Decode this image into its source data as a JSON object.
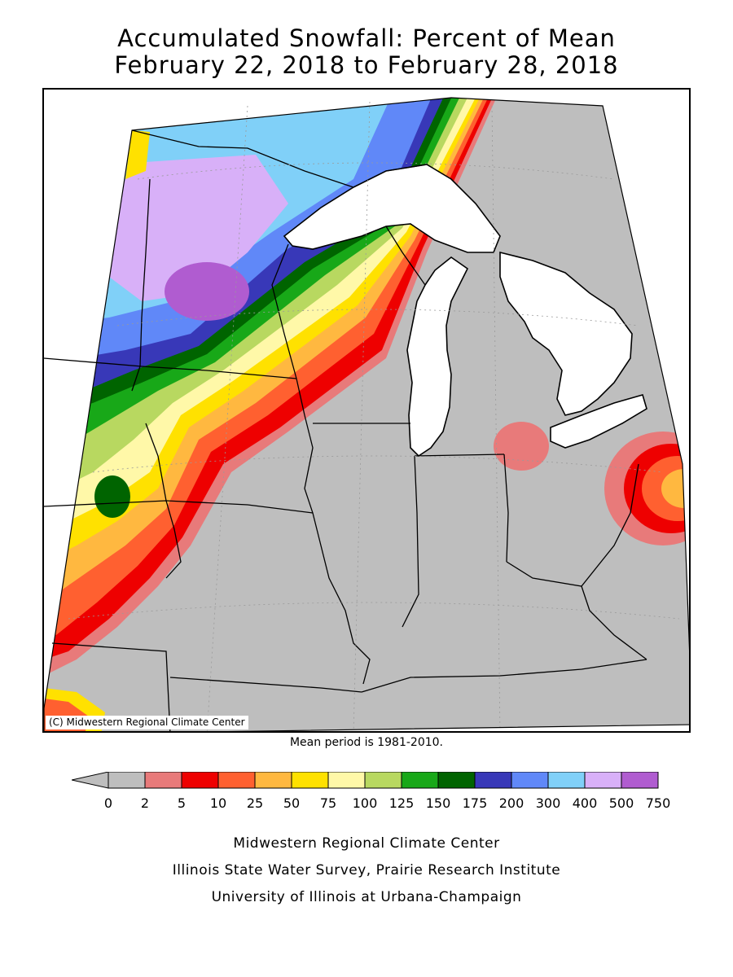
{
  "title_line1": "Accumulated Snowfall: Percent of Mean",
  "title_line2": "February 22, 2018 to February 28, 2018",
  "copyright": "(C) Midwestern Regional Climate Center",
  "mean_period": "Mean period is 1981-2010.",
  "legend": {
    "bins": [
      {
        "from": "0",
        "color": "#bebebe"
      },
      {
        "from": "2",
        "color": "#e87a7a"
      },
      {
        "from": "5",
        "color": "#ee0000"
      },
      {
        "from": "10",
        "color": "#ff6030"
      },
      {
        "from": "25",
        "color": "#ffb840"
      },
      {
        "from": "50",
        "color": "#ffe100"
      },
      {
        "from": "75",
        "color": "#fff8a8"
      },
      {
        "from": "100",
        "color": "#b8d860"
      },
      {
        "from": "125",
        "color": "#18a818"
      },
      {
        "from": "150",
        "color": "#006400"
      },
      {
        "from": "175",
        "color": "#3838b8"
      },
      {
        "from": "200",
        "color": "#6088f8"
      },
      {
        "from": "300",
        "color": "#80d0f8"
      },
      {
        "from": "400",
        "color": "#d8b0f8"
      },
      {
        "from": "500",
        "color": "#b05cd0"
      }
    ],
    "labels": [
      "0",
      "2",
      "5",
      "10",
      "25",
      "50",
      "75",
      "100",
      "125",
      "150",
      "175",
      "200",
      "300",
      "400",
      "500",
      "750"
    ]
  },
  "footer": {
    "line1": "Midwestern Regional Climate Center",
    "line2": "Illinois State Water Survey, Prairie Research Institute",
    "line3": "University of Illinois at Urbana-Champaign"
  },
  "colors": {
    "gray": "#bebebe",
    "pink": "#e87a7a",
    "red": "#ee0000",
    "orange": "#ff6030",
    "lightorange": "#ffb840",
    "yellow": "#ffe100",
    "paleyellow": "#fff8a8",
    "lightgreen": "#b8d860",
    "green": "#18a818",
    "darkgreen": "#006400",
    "indigo": "#3838b8",
    "blue": "#6088f8",
    "lightblue": "#80d0f8",
    "lavender": "#d8b0f8",
    "purple": "#b05cd0"
  }
}
